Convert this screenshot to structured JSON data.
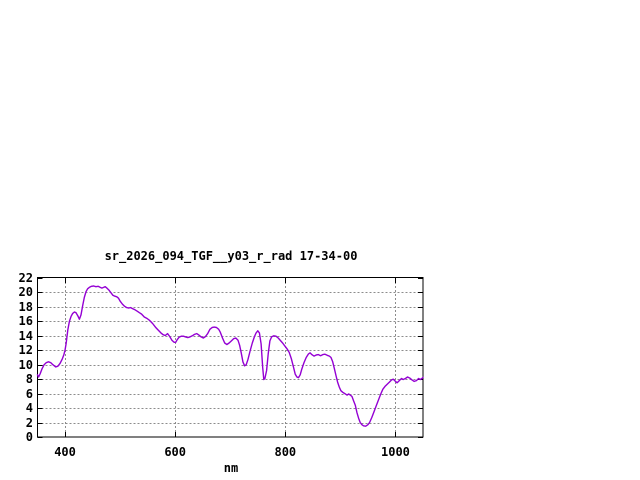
{
  "window": {
    "background": "#ffffff"
  },
  "chart_data": {
    "type": "line",
    "title": "sr_2026_094_TGF__y03_r_rad 17-34-00",
    "xlabel": "nm",
    "ylabel": "",
    "xlim": [
      350,
      1050
    ],
    "ylim": [
      0,
      22
    ],
    "x_ticks": [
      400,
      600,
      800,
      1000
    ],
    "y_ticks": [
      0,
      2,
      4,
      6,
      8,
      10,
      12,
      14,
      16,
      18,
      20,
      22
    ],
    "grid": true,
    "legend_position": "none",
    "line_color": "#9400d3",
    "grid_color": "#8c8c8c",
    "axis_color": "#000000",
    "series": [
      {
        "name": "sr_2026_094_TGF__y03_r_rad 17-34-00",
        "points": [
          [
            350,
            8.6
          ],
          [
            352,
            8.3
          ],
          [
            355,
            8.8
          ],
          [
            358,
            9.4
          ],
          [
            362,
            10.0
          ],
          [
            366,
            10.3
          ],
          [
            370,
            10.4
          ],
          [
            374,
            10.3
          ],
          [
            378,
            10.0
          ],
          [
            383,
            9.7
          ],
          [
            387,
            9.8
          ],
          [
            391,
            10.2
          ],
          [
            395,
            10.8
          ],
          [
            398,
            11.4
          ],
          [
            400,
            12.0
          ],
          [
            402,
            12.9
          ],
          [
            405,
            14.8
          ],
          [
            408,
            16.0
          ],
          [
            411,
            16.7
          ],
          [
            414,
            17.1
          ],
          [
            417,
            17.3
          ],
          [
            420,
            17.2
          ],
          [
            423,
            16.8
          ],
          [
            426,
            16.3
          ],
          [
            429,
            16.9
          ],
          [
            432,
            18.2
          ],
          [
            435,
            19.3
          ],
          [
            438,
            20.1
          ],
          [
            441,
            20.5
          ],
          [
            444,
            20.7
          ],
          [
            448,
            20.85
          ],
          [
            452,
            20.9
          ],
          [
            456,
            20.8
          ],
          [
            460,
            20.85
          ],
          [
            464,
            20.7
          ],
          [
            467,
            20.6
          ],
          [
            470,
            20.7
          ],
          [
            473,
            20.8
          ],
          [
            476,
            20.6
          ],
          [
            480,
            20.3
          ],
          [
            484,
            19.9
          ],
          [
            487,
            19.6
          ],
          [
            490,
            19.5
          ],
          [
            494,
            19.4
          ],
          [
            497,
            19.2
          ],
          [
            500,
            18.8
          ],
          [
            504,
            18.4
          ],
          [
            508,
            18.1
          ],
          [
            512,
            17.9
          ],
          [
            516,
            17.85
          ],
          [
            519,
            17.9
          ],
          [
            523,
            17.75
          ],
          [
            527,
            17.6
          ],
          [
            531,
            17.4
          ],
          [
            535,
            17.2
          ],
          [
            539,
            17.0
          ],
          [
            544,
            16.6
          ],
          [
            549,
            16.4
          ],
          [
            554,
            16.1
          ],
          [
            559,
            15.7
          ],
          [
            564,
            15.2
          ],
          [
            569,
            14.8
          ],
          [
            574,
            14.4
          ],
          [
            578,
            14.15
          ],
          [
            582,
            14.05
          ],
          [
            586,
            14.3
          ],
          [
            590,
            13.9
          ],
          [
            594,
            13.4
          ],
          [
            598,
            13.1
          ],
          [
            601,
            13.1
          ],
          [
            604,
            13.5
          ],
          [
            607,
            13.8
          ],
          [
            611,
            13.95
          ],
          [
            615,
            13.95
          ],
          [
            619,
            13.85
          ],
          [
            623,
            13.75
          ],
          [
            627,
            13.85
          ],
          [
            631,
            14.0
          ],
          [
            635,
            14.2
          ],
          [
            639,
            14.3
          ],
          [
            643,
            14.1
          ],
          [
            647,
            13.85
          ],
          [
            651,
            13.7
          ],
          [
            655,
            13.9
          ],
          [
            659,
            14.3
          ],
          [
            663,
            14.9
          ],
          [
            667,
            15.15
          ],
          [
            671,
            15.2
          ],
          [
            675,
            15.15
          ],
          [
            679,
            14.9
          ],
          [
            682,
            14.5
          ],
          [
            686,
            13.7
          ],
          [
            690,
            13.0
          ],
          [
            694,
            12.8
          ],
          [
            698,
            13.0
          ],
          [
            702,
            13.3
          ],
          [
            706,
            13.6
          ],
          [
            710,
            13.7
          ],
          [
            714,
            13.4
          ],
          [
            717,
            12.7
          ],
          [
            720,
            11.6
          ],
          [
            723,
            10.4
          ],
          [
            726,
            9.85
          ],
          [
            729,
            10.0
          ],
          [
            732,
            10.7
          ],
          [
            736,
            11.9
          ],
          [
            740,
            13.0
          ],
          [
            744,
            13.9
          ],
          [
            747,
            14.4
          ],
          [
            750,
            14.7
          ],
          [
            753,
            14.4
          ],
          [
            756,
            12.9
          ],
          [
            759,
            9.6
          ],
          [
            761,
            7.95
          ],
          [
            763,
            8.1
          ],
          [
            766,
            9.2
          ],
          [
            769,
            11.5
          ],
          [
            772,
            13.3
          ],
          [
            775,
            13.85
          ],
          [
            779,
            14.0
          ],
          [
            783,
            13.95
          ],
          [
            787,
            13.7
          ],
          [
            791,
            13.35
          ],
          [
            795,
            13.0
          ],
          [
            799,
            12.6
          ],
          [
            803,
            12.2
          ],
          [
            807,
            11.7
          ],
          [
            811,
            10.8
          ],
          [
            815,
            9.6
          ],
          [
            818,
            8.7
          ],
          [
            821,
            8.3
          ],
          [
            824,
            8.2
          ],
          [
            827,
            8.6
          ],
          [
            830,
            9.4
          ],
          [
            834,
            10.3
          ],
          [
            838,
            11.0
          ],
          [
            842,
            11.5
          ],
          [
            845,
            11.65
          ],
          [
            848,
            11.4
          ],
          [
            852,
            11.2
          ],
          [
            856,
            11.35
          ],
          [
            860,
            11.4
          ],
          [
            864,
            11.25
          ],
          [
            868,
            11.4
          ],
          [
            872,
            11.45
          ],
          [
            876,
            11.3
          ],
          [
            880,
            11.2
          ],
          [
            883,
            11.0
          ],
          [
            886,
            10.4
          ],
          [
            889,
            9.5
          ],
          [
            892,
            8.5
          ],
          [
            895,
            7.6
          ],
          [
            898,
            6.9
          ],
          [
            901,
            6.4
          ],
          [
            904,
            6.2
          ],
          [
            908,
            6.0
          ],
          [
            912,
            5.8
          ],
          [
            915,
            5.95
          ],
          [
            918,
            5.8
          ],
          [
            921,
            5.6
          ],
          [
            924,
            5.0
          ],
          [
            927,
            4.4
          ],
          [
            930,
            3.4
          ],
          [
            933,
            2.6
          ],
          [
            936,
            2.0
          ],
          [
            939,
            1.7
          ],
          [
            942,
            1.55
          ],
          [
            946,
            1.5
          ],
          [
            950,
            1.7
          ],
          [
            953,
            2.0
          ],
          [
            957,
            2.7
          ],
          [
            961,
            3.5
          ],
          [
            965,
            4.3
          ],
          [
            969,
            5.1
          ],
          [
            973,
            5.9
          ],
          [
            977,
            6.6
          ],
          [
            981,
            7.0
          ],
          [
            985,
            7.3
          ],
          [
            989,
            7.6
          ],
          [
            993,
            7.9
          ],
          [
            996,
            8.0
          ],
          [
            1000,
            7.7
          ],
          [
            1003,
            7.5
          ],
          [
            1007,
            7.8
          ],
          [
            1011,
            8.1
          ],
          [
            1014,
            7.95
          ],
          [
            1018,
            8.1
          ],
          [
            1022,
            8.3
          ],
          [
            1026,
            8.15
          ],
          [
            1030,
            7.9
          ],
          [
            1034,
            7.7
          ],
          [
            1038,
            7.8
          ],
          [
            1042,
            8.1
          ],
          [
            1045,
            7.95
          ],
          [
            1048,
            8.1
          ],
          [
            1050,
            8.25
          ]
        ]
      }
    ]
  }
}
